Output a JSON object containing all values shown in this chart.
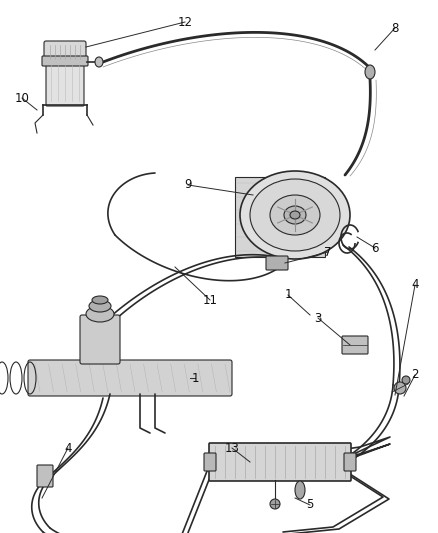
{
  "bg_color": "#ffffff",
  "fig_width": 4.39,
  "fig_height": 5.33,
  "dpi": 100,
  "line_color": "#2a2a2a",
  "gray1": "#888888",
  "gray2": "#555555",
  "gray3": "#bbbbbb"
}
